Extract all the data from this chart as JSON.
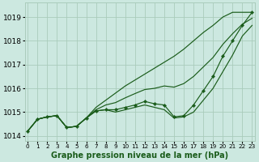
{
  "xlabel": "Graphe pression niveau de la mer (hPa)",
  "bg_color": "#cce8e0",
  "grid_color": "#aaccbb",
  "line_color": "#1a5c1a",
  "hours": [
    0,
    1,
    2,
    3,
    4,
    5,
    6,
    7,
    8,
    9,
    10,
    11,
    12,
    13,
    14,
    15,
    16,
    17,
    18,
    19,
    20,
    21,
    22,
    23
  ],
  "line_main": [
    1014.2,
    1014.7,
    1014.8,
    1014.85,
    1014.35,
    1014.4,
    1014.75,
    1015.05,
    1015.1,
    1015.1,
    1015.2,
    1015.3,
    1015.45,
    1015.35,
    1015.3,
    1014.8,
    1014.85,
    1015.3,
    1015.9,
    1016.5,
    1017.35,
    1018.0,
    1018.65,
    1019.2
  ],
  "line_max": [
    1014.2,
    1014.7,
    1014.8,
    1014.85,
    1014.35,
    1014.4,
    1014.75,
    1015.2,
    1015.5,
    1015.8,
    1016.1,
    1016.35,
    1016.6,
    1016.85,
    1017.1,
    1017.35,
    1017.65,
    1018.0,
    1018.35,
    1018.65,
    1019.0,
    1019.2,
    1019.2,
    1019.2
  ],
  "line_min": [
    1014.2,
    1014.7,
    1014.8,
    1014.85,
    1014.35,
    1014.4,
    1014.75,
    1015.05,
    1015.1,
    1015.0,
    1015.1,
    1015.2,
    1015.3,
    1015.2,
    1015.1,
    1014.75,
    1014.8,
    1015.0,
    1015.5,
    1016.0,
    1016.7,
    1017.4,
    1018.2,
    1018.65
  ],
  "line_avg": [
    1014.2,
    1014.7,
    1014.8,
    1014.85,
    1014.35,
    1014.4,
    1014.75,
    1015.1,
    1015.3,
    1015.4,
    1015.6,
    1015.78,
    1015.95,
    1016.0,
    1016.1,
    1016.05,
    1016.2,
    1016.5,
    1016.9,
    1017.3,
    1017.85,
    1018.3,
    1018.7,
    1018.95
  ],
  "ylim": [
    1013.8,
    1019.6
  ],
  "yticks": [
    1014,
    1015,
    1016,
    1017,
    1018,
    1019
  ],
  "xlim": [
    -0.3,
    23.3
  ]
}
